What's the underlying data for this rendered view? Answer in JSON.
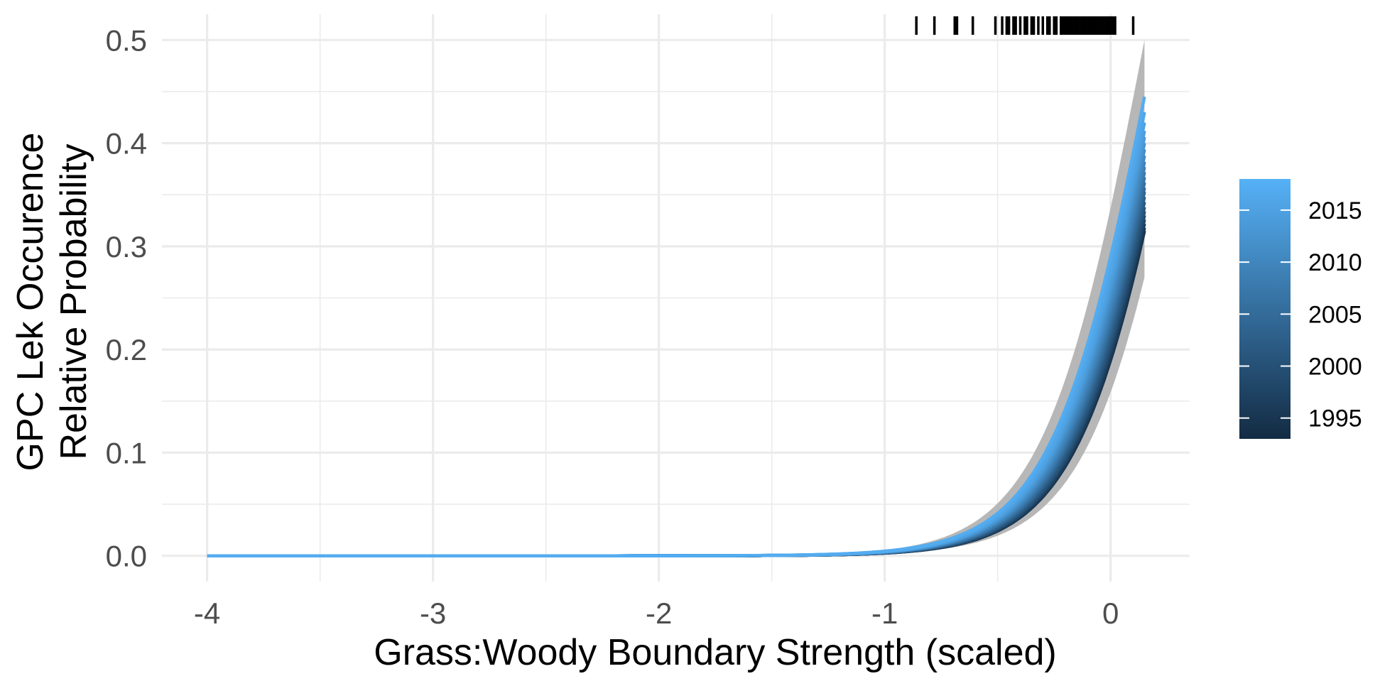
{
  "chart_data": {
    "type": "line",
    "title": "",
    "xlabel": "Grass:Woody Boundary Strength (scaled)",
    "ylabel_lines": [
      "GPC Lek Occurence",
      "Relative Probability"
    ],
    "xlim": [
      -4.2,
      0.35
    ],
    "ylim": [
      -0.025,
      0.525
    ],
    "x_ticks": [
      -4,
      -3,
      -2,
      -1,
      0
    ],
    "x_tick_labels": [
      "-4",
      "-3",
      "-2",
      "-1",
      "0"
    ],
    "y_ticks": [
      0.0,
      0.1,
      0.2,
      0.3,
      0.4,
      0.5
    ],
    "y_tick_labels": [
      "0.0",
      "0.1",
      "0.2",
      "0.3",
      "0.4",
      "0.5"
    ],
    "grid": true,
    "x_range": [
      -4,
      0.15
    ],
    "curve_model": "logistic",
    "curve_slope": 4.5,
    "ribbon": {
      "color": "#b3b3b3",
      "lower_endpoints": [
        {
          "x": -1.0,
          "y": 0.001
        },
        {
          "x": -0.5,
          "y": 0.02
        },
        {
          "x": 0.15,
          "y": 0.27
        }
      ],
      "upper_endpoints": [
        {
          "x": -1.0,
          "y": 0.004
        },
        {
          "x": -0.5,
          "y": 0.045
        },
        {
          "x": 0.15,
          "y": 0.5
        }
      ]
    },
    "series": [
      {
        "year": 1994,
        "end_value": 0.315
      },
      {
        "year": 1995,
        "end_value": 0.318
      },
      {
        "year": 1996,
        "end_value": 0.322
      },
      {
        "year": 1997,
        "end_value": 0.326
      },
      {
        "year": 1998,
        "end_value": 0.33
      },
      {
        "year": 1999,
        "end_value": 0.334
      },
      {
        "year": 2000,
        "end_value": 0.338
      },
      {
        "year": 2001,
        "end_value": 0.343
      },
      {
        "year": 2002,
        "end_value": 0.348
      },
      {
        "year": 2003,
        "end_value": 0.353
      },
      {
        "year": 2004,
        "end_value": 0.357
      },
      {
        "year": 2005,
        "end_value": 0.362
      },
      {
        "year": 2006,
        "end_value": 0.367
      },
      {
        "year": 2007,
        "end_value": 0.372
      },
      {
        "year": 2008,
        "end_value": 0.377
      },
      {
        "year": 2009,
        "end_value": 0.382
      },
      {
        "year": 2010,
        "end_value": 0.388
      },
      {
        "year": 2011,
        "end_value": 0.394
      },
      {
        "year": 2012,
        "end_value": 0.4
      },
      {
        "year": 2013,
        "end_value": 0.406
      },
      {
        "year": 2014,
        "end_value": 0.412
      },
      {
        "year": 2015,
        "end_value": 0.42
      },
      {
        "year": 2016,
        "end_value": 0.43
      },
      {
        "year": 2017,
        "end_value": 0.445
      }
    ],
    "rug_x": [
      -0.86,
      -0.78,
      -0.69,
      -0.68,
      -0.61,
      -0.51,
      -0.48,
      -0.46,
      -0.45,
      -0.43,
      -0.42,
      -0.4,
      -0.38,
      -0.37,
      -0.35,
      -0.34,
      -0.32,
      -0.3,
      -0.28,
      -0.27,
      -0.25,
      -0.24,
      -0.22,
      -0.21,
      -0.2,
      -0.19,
      -0.18,
      -0.17,
      -0.16,
      -0.15,
      -0.14,
      -0.13,
      -0.12,
      -0.11,
      -0.1,
      -0.09,
      -0.08,
      -0.07,
      -0.06,
      -0.05,
      -0.04,
      -0.03,
      -0.02,
      -0.01,
      0.0,
      0.01,
      0.02,
      0.1
    ],
    "legend": {
      "placement": "right",
      "type": "colorbar",
      "year_min": 1993,
      "year_max": 2018,
      "color_low": "#132b43",
      "color_high": "#56b1f7",
      "ticks": [
        1995,
        2000,
        2005,
        2010,
        2015
      ],
      "tick_labels": [
        "1995",
        "2000",
        "2005",
        "2010",
        "2015"
      ]
    }
  }
}
